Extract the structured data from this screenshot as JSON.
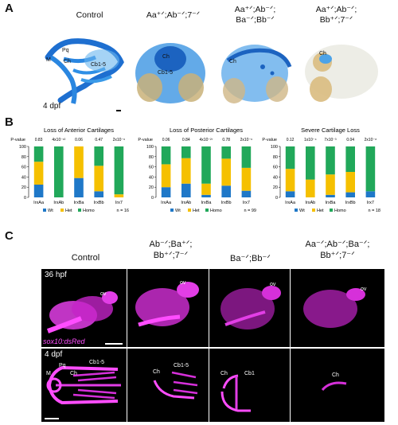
{
  "panelA": {
    "letter": "A",
    "titles": [
      "Control",
      "Aa⁺ᐟ;Ab⁻ᐟ;7⁻ᐟ",
      "Aa⁺ᐟ;Ab⁻ᐟ;",
      "Aa⁺ᐟ;Ab⁻ᐟ;"
    ],
    "titles2": [
      "",
      "",
      "Ba⁻ᐟ;Bb⁻ᐟ",
      "Bb⁺ᐟ;7⁻ᐟ"
    ],
    "stage": "4 dpf",
    "labels": {
      "pq": "Pq",
      "m": "M",
      "ch": "Ch",
      "cb": "Cb1-5"
    }
  },
  "panelB": {
    "letter": "B",
    "colors": {
      "wt": "#1f78c8",
      "het": "#f5c000",
      "homo": "#21a85a"
    },
    "legend": {
      "wt": "Wt",
      "het": "Het",
      "homo": "Homo"
    },
    "pvalue_label": "P-value"
  },
  "chart_data": [
    {
      "type": "bar",
      "title": "Loss of Anterior Cartilages",
      "categories": [
        "IrxAa",
        "IrxAb",
        "IrxBa",
        "IrxBb",
        "Irx7"
      ],
      "pvalues": [
        "0.83",
        "4x10⁻¹³",
        "0.06",
        "0.47",
        "2x10⁻⁶"
      ],
      "ylim": [
        0,
        100
      ],
      "yticks": [
        "0",
        "20",
        "40",
        "60",
        "80",
        "100"
      ],
      "n": "n = 16",
      "stacked": true,
      "series": [
        {
          "name": "Wt",
          "values": [
            25,
            0,
            38,
            12,
            0
          ]
        },
        {
          "name": "Het",
          "values": [
            45,
            0,
            62,
            50,
            6
          ]
        },
        {
          "name": "Homo",
          "values": [
            30,
            100,
            0,
            38,
            94
          ]
        }
      ]
    },
    {
      "type": "bar",
      "title": "Loss of Posterior Cartilages",
      "categories": [
        "IrxAa",
        "IrxAb",
        "IrxBa",
        "IrxBb",
        "Irx7"
      ],
      "pvalues": [
        "0.06",
        "0.84",
        "4x10⁻²⁷",
        "0.78",
        "2x10⁻⁶"
      ],
      "ylim": [
        0,
        100
      ],
      "yticks": [
        "0",
        "20",
        "40",
        "60",
        "80",
        "100"
      ],
      "n": "n = 99",
      "stacked": true,
      "series": [
        {
          "name": "Wt",
          "values": [
            20,
            27,
            5,
            23,
            13
          ]
        },
        {
          "name": "Het",
          "values": [
            45,
            50,
            22,
            53,
            45
          ]
        },
        {
          "name": "Homo",
          "values": [
            35,
            23,
            73,
            24,
            42
          ]
        }
      ]
    },
    {
      "type": "bar",
      "title": "Severe Cartilage Loss",
      "categories": [
        "IrxAa",
        "IrxAb",
        "IrxBa",
        "IrxBb",
        "Irx7"
      ],
      "pvalues": [
        "0.12",
        "1x10⁻⁴",
        "7x10⁻³",
        "0.04",
        "2x10⁻⁸"
      ],
      "ylim": [
        0,
        100
      ],
      "yticks": [
        "0",
        "20",
        "40",
        "60",
        "80",
        "100"
      ],
      "n": "n = 18",
      "stacked": true,
      "series": [
        {
          "name": "Wt",
          "values": [
            12,
            0,
            5,
            10,
            12
          ]
        },
        {
          "name": "Het",
          "values": [
            44,
            35,
            40,
            40,
            0
          ]
        },
        {
          "name": "Homo",
          "values": [
            44,
            65,
            55,
            50,
            88
          ]
        }
      ]
    }
  ],
  "panelC": {
    "letter": "C",
    "titles": [
      "Control",
      "Ab⁻ᐟ;Ba⁺ᐟ;",
      "Ba⁻ᐟ;Bb⁻ᐟ",
      "Aa⁻ᐟ;Ab⁻ᐟ;Ba⁻ᐟ;"
    ],
    "titles2": [
      "",
      "Bb⁺ᐟ;7⁻ᐟ",
      "",
      "Bb⁺ᐟ;7⁻ᐟ"
    ],
    "stage_top": "36 hpf",
    "stage_bottom": "4 dpf",
    "reporter": "sox10:dsRed",
    "labels": {
      "ov": "ov",
      "m": "M",
      "pq": "Pq",
      "ch": "Ch",
      "cb": "Cb1-5",
      "cb1": "Cb1"
    }
  }
}
